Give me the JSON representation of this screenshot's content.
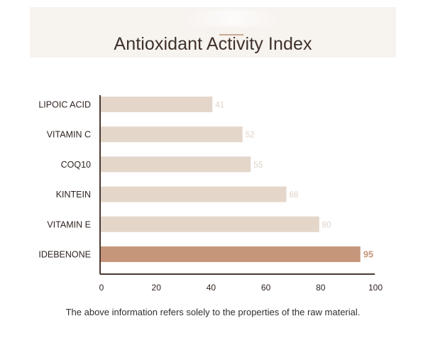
{
  "chart_data": {
    "type": "bar",
    "orientation": "horizontal",
    "title": "Antioxidant Activity Index",
    "categories": [
      "LIPOIC ACID",
      "VITAMIN C",
      "COQ10",
      "KINTEIN",
      "VITAMIN E",
      "IDEBENONE"
    ],
    "values": [
      41,
      52,
      55,
      68,
      80,
      95
    ],
    "highlight": "IDEBENONE",
    "xlim": [
      0,
      100
    ],
    "xticks": [
      0,
      20,
      40,
      60,
      80,
      100
    ],
    "xlabel": "",
    "ylabel": "",
    "grid": false,
    "colors": {
      "bar": "#e4d7ca",
      "bar_highlight": "#c6967b",
      "value_label": "#dfd2c7",
      "value_label_highlight": "#c6967b",
      "axis": "#4a3a30",
      "category_label": "#2f2521"
    }
  },
  "footnote": "The above information refers solely to the properties of the raw material."
}
